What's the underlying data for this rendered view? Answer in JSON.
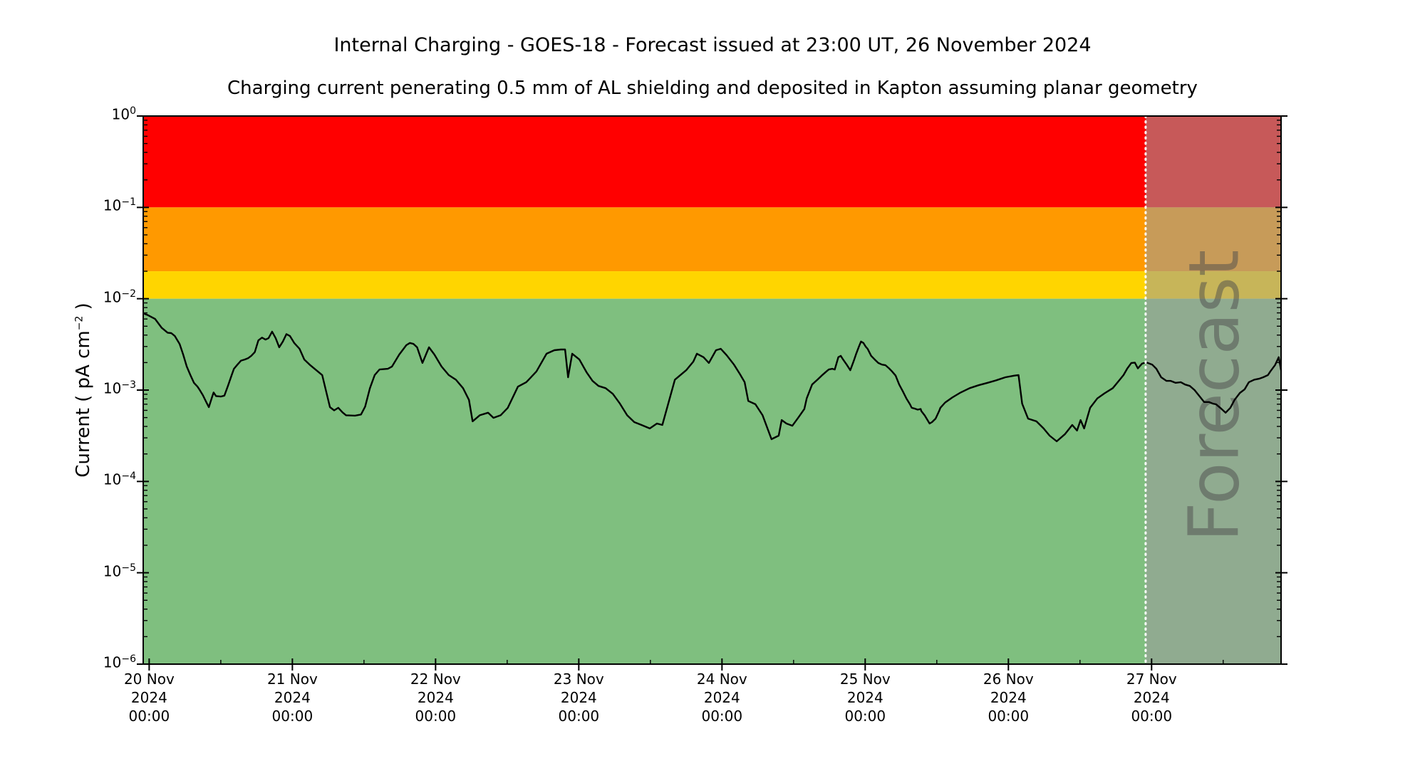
{
  "header": {
    "title": "Internal Charging - GOES-18 - Forecast issued at 23:00 UT, 26 November 2024",
    "subtitle": "Charging current penerating 0.5 mm of AL shielding and deposited in Kapton assuming planar geometry"
  },
  "y_axis_label": {
    "text_before_sup": "Current ( pA cm",
    "sup": "−2",
    "text_after_sup": " )"
  },
  "forecast": {
    "label": "Forecast",
    "start_hours": 167.0,
    "issue_time_text": "23:00 UT, 26 November 2024",
    "overlay_color": "rgba(157,157,157,0.57)",
    "divider_color": "#ffffff",
    "watermark_color": "rgba(75,75,75,0.5)"
  },
  "chart_data": {
    "type": "line",
    "title": "Internal Charging - GOES-18 - Forecast issued at 23:00 UT, 26 November 2024",
    "xlabel": "",
    "ylabel": "Current ( pA cm^-2 )",
    "y_scale": "log",
    "ylim": [
      1e-06,
      1.0
    ],
    "x_unit": "hours since 20 Nov 2024 00:00 UT",
    "xlim_hours": [
      -1.0,
      189.7
    ],
    "grid": false,
    "legend": "none",
    "line_color": "#000000",
    "bands": [
      {
        "name": "red",
        "min": 0.1,
        "max": 1.0,
        "color": "#ff0000"
      },
      {
        "name": "orange",
        "min": 0.02,
        "max": 0.1,
        "color": "#ff9900"
      },
      {
        "name": "yellow",
        "min": 0.01,
        "max": 0.02,
        "color": "#ffd500"
      },
      {
        "name": "green",
        "min": 1e-06,
        "max": 0.01,
        "color": "#7fbf7f"
      }
    ],
    "x_ticks": [
      {
        "t": 0,
        "lines": [
          "20 Nov",
          "2024",
          "00:00"
        ]
      },
      {
        "t": 24,
        "lines": [
          "21 Nov",
          "2024",
          "00:00"
        ]
      },
      {
        "t": 48,
        "lines": [
          "22 Nov",
          "2024",
          "00:00"
        ]
      },
      {
        "t": 72,
        "lines": [
          "23 Nov",
          "2024",
          "00:00"
        ]
      },
      {
        "t": 96,
        "lines": [
          "24 Nov",
          "2024",
          "00:00"
        ]
      },
      {
        "t": 120,
        "lines": [
          "25 Nov",
          "2024",
          "00:00"
        ]
      },
      {
        "t": 144,
        "lines": [
          "26 Nov",
          "2024",
          "00:00"
        ]
      },
      {
        "t": 168,
        "lines": [
          "27 Nov",
          "2024",
          "00:00"
        ]
      }
    ],
    "x_minor_ticks": [
      12,
      36,
      60,
      84,
      108,
      132,
      156,
      180
    ],
    "y_ticks": [
      {
        "log10": 0,
        "exp": "0"
      },
      {
        "log10": -1,
        "exp": "−1"
      },
      {
        "log10": -2,
        "exp": "−2"
      },
      {
        "log10": -3,
        "exp": "−3"
      },
      {
        "log10": -4,
        "exp": "−4"
      },
      {
        "log10": -5,
        "exp": "−5"
      },
      {
        "log10": -6,
        "exp": "−6"
      }
    ],
    "series": [
      {
        "name": "observed",
        "color": "#000000",
        "points": [
          [
            -1.0,
            0.0069
          ],
          [
            -0.2,
            0.0066
          ],
          [
            1.0,
            0.006
          ],
          [
            2.1,
            0.0048
          ],
          [
            3.1,
            0.00425
          ],
          [
            3.7,
            0.0042
          ],
          [
            4.3,
            0.0039
          ],
          [
            5.1,
            0.0032
          ],
          [
            5.7,
            0.00245
          ],
          [
            6.3,
            0.00181
          ],
          [
            6.9,
            0.00146
          ],
          [
            7.5,
            0.0012
          ],
          [
            8.1,
            0.00109
          ],
          [
            8.4,
            0.00102
          ],
          [
            9.0,
            0.00088
          ],
          [
            9.6,
            0.00073
          ],
          [
            10.0,
            0.00065
          ],
          [
            10.6,
            0.00086
          ],
          [
            10.8,
            0.00094
          ],
          [
            11.2,
            0.00086
          ],
          [
            12.0,
            0.00085
          ],
          [
            12.6,
            0.00087
          ],
          [
            13.2,
            0.00111
          ],
          [
            13.8,
            0.00144
          ],
          [
            14.2,
            0.00171
          ],
          [
            14.8,
            0.0019
          ],
          [
            15.4,
            0.0021
          ],
          [
            16.0,
            0.00216
          ],
          [
            16.6,
            0.00224
          ],
          [
            17.1,
            0.00237
          ],
          [
            17.7,
            0.0026
          ],
          [
            18.3,
            0.0035
          ],
          [
            18.9,
            0.00375
          ],
          [
            19.5,
            0.00357
          ],
          [
            20.0,
            0.0037
          ],
          [
            20.6,
            0.00436
          ],
          [
            21.2,
            0.0037
          ],
          [
            21.8,
            0.00294
          ],
          [
            22.4,
            0.0034
          ],
          [
            23.0,
            0.0041
          ],
          [
            23.6,
            0.0039
          ],
          [
            24.3,
            0.00328
          ],
          [
            25.2,
            0.00283
          ],
          [
            26.0,
            0.00216
          ],
          [
            27.0,
            0.00187
          ],
          [
            28.0,
            0.00165
          ],
          [
            29.0,
            0.00146
          ],
          [
            29.6,
            0.001
          ],
          [
            30.3,
            0.00065
          ],
          [
            31.0,
            0.0006
          ],
          [
            31.7,
            0.00064
          ],
          [
            32.4,
            0.00057
          ],
          [
            33.0,
            0.00053
          ],
          [
            34.5,
            0.000525
          ],
          [
            35.5,
            0.00054
          ],
          [
            36.2,
            0.00066
          ],
          [
            37.0,
            0.00105
          ],
          [
            37.8,
            0.00146
          ],
          [
            38.6,
            0.00168
          ],
          [
            40.0,
            0.00171
          ],
          [
            40.7,
            0.00181
          ],
          [
            41.9,
            0.00245
          ],
          [
            43.1,
            0.0031
          ],
          [
            43.7,
            0.00328
          ],
          [
            44.3,
            0.0032
          ],
          [
            44.9,
            0.00294
          ],
          [
            45.8,
            0.00198
          ],
          [
            46.9,
            0.00294
          ],
          [
            47.8,
            0.00245
          ],
          [
            49.0,
            0.00181
          ],
          [
            50.2,
            0.00146
          ],
          [
            51.4,
            0.0013
          ],
          [
            52.6,
            0.00105
          ],
          [
            53.6,
            0.00078
          ],
          [
            54.2,
            0.000455
          ],
          [
            55.4,
            0.00053
          ],
          [
            56.8,
            0.000565
          ],
          [
            57.7,
            0.000497
          ],
          [
            58.9,
            0.00053
          ],
          [
            60.1,
            0.00064
          ],
          [
            61.8,
            0.00109
          ],
          [
            63.2,
            0.00122
          ],
          [
            63.6,
            0.0013
          ],
          [
            64.9,
            0.0016
          ],
          [
            66.6,
            0.0025
          ],
          [
            67.9,
            0.00273
          ],
          [
            69.0,
            0.00278
          ],
          [
            69.7,
            0.00278
          ],
          [
            70.2,
            0.00138
          ],
          [
            70.9,
            0.0025
          ],
          [
            72.1,
            0.00216
          ],
          [
            73.3,
            0.00157
          ],
          [
            74.3,
            0.00126
          ],
          [
            75.3,
            0.00111
          ],
          [
            76.5,
            0.00105
          ],
          [
            77.7,
            0.00091
          ],
          [
            78.9,
            0.00071
          ],
          [
            80.1,
            0.00053
          ],
          [
            81.3,
            0.000446
          ],
          [
            82.5,
            0.000415
          ],
          [
            83.9,
            0.00038
          ],
          [
            85.1,
            0.00043
          ],
          [
            86.0,
            0.000415
          ],
          [
            88.1,
            0.0013
          ],
          [
            90.0,
            0.00165
          ],
          [
            91.2,
            0.00205
          ],
          [
            91.8,
            0.0025
          ],
          [
            92.9,
            0.00229
          ],
          [
            93.8,
            0.00198
          ],
          [
            95.0,
            0.00273
          ],
          [
            95.8,
            0.00283
          ],
          [
            96.8,
            0.0024
          ],
          [
            98.0,
            0.0019
          ],
          [
            99.0,
            0.0015
          ],
          [
            99.8,
            0.00122
          ],
          [
            100.4,
            0.00076
          ],
          [
            101.6,
            0.0007
          ],
          [
            102.8,
            0.00053
          ],
          [
            104.3,
            0.00029
          ],
          [
            105.5,
            0.000317
          ],
          [
            106.0,
            0.00047
          ],
          [
            106.8,
            0.00043
          ],
          [
            107.8,
            0.000407
          ],
          [
            108.8,
            0.0005
          ],
          [
            109.8,
            0.00062
          ],
          [
            110.2,
            0.00081
          ],
          [
            111.1,
            0.00115
          ],
          [
            112.0,
            0.0013
          ],
          [
            112.7,
            0.00144
          ],
          [
            113.5,
            0.0016
          ],
          [
            113.9,
            0.00168
          ],
          [
            114.5,
            0.00171
          ],
          [
            114.9,
            0.00168
          ],
          [
            115.5,
            0.00229
          ],
          [
            115.9,
            0.00237
          ],
          [
            116.3,
            0.00216
          ],
          [
            116.9,
            0.0019
          ],
          [
            117.5,
            0.00165
          ],
          [
            118.1,
            0.0021
          ],
          [
            118.5,
            0.0025
          ],
          [
            118.9,
            0.00294
          ],
          [
            119.3,
            0.0034
          ],
          [
            119.7,
            0.00328
          ],
          [
            120.1,
            0.00298
          ],
          [
            120.4,
            0.00283
          ],
          [
            121.0,
            0.00237
          ],
          [
            121.6,
            0.00216
          ],
          [
            122.2,
            0.00198
          ],
          [
            122.8,
            0.0019
          ],
          [
            123.4,
            0.00187
          ],
          [
            124.0,
            0.00173
          ],
          [
            124.5,
            0.0016
          ],
          [
            125.1,
            0.00144
          ],
          [
            125.7,
            0.00115
          ],
          [
            126.3,
            0.00097
          ],
          [
            126.9,
            0.00081
          ],
          [
            127.5,
            0.0007
          ],
          [
            127.8,
            0.00064
          ],
          [
            128.2,
            0.00063
          ],
          [
            128.8,
            0.00061
          ],
          [
            129.3,
            0.00062
          ],
          [
            129.4,
            0.00059
          ],
          [
            130.0,
            0.000525
          ],
          [
            130.5,
            0.000463
          ],
          [
            130.8,
            0.00043
          ],
          [
            131.2,
            0.000446
          ],
          [
            131.8,
            0.000487
          ],
          [
            132.4,
            0.00059
          ],
          [
            132.6,
            0.00064
          ],
          [
            133.4,
            0.00073
          ],
          [
            134.6,
            0.00083
          ],
          [
            136.0,
            0.00094
          ],
          [
            137.5,
            0.00105
          ],
          [
            139.0,
            0.00113
          ],
          [
            140.5,
            0.0012
          ],
          [
            142.0,
            0.00128
          ],
          [
            143.5,
            0.00138
          ],
          [
            145.0,
            0.00144
          ],
          [
            145.7,
            0.00146
          ],
          [
            146.3,
            0.00071
          ],
          [
            147.3,
            0.000487
          ],
          [
            148.7,
            0.000455
          ],
          [
            149.9,
            0.00038
          ],
          [
            150.9,
            0.000317
          ],
          [
            152.1,
            0.000275
          ],
          [
            153.5,
            0.00033
          ],
          [
            154.7,
            0.000415
          ],
          [
            155.5,
            0.00036
          ],
          [
            156.1,
            0.00047
          ],
          [
            156.7,
            0.00038
          ],
          [
            157.7,
            0.00064
          ],
          [
            158.9,
            0.00081
          ],
          [
            160.1,
            0.00092
          ],
          [
            161.5,
            0.00105
          ],
          [
            162.5,
            0.00126
          ],
          [
            163.3,
            0.00146
          ],
          [
            163.9,
            0.00171
          ],
          [
            164.6,
            0.00198
          ],
          [
            165.2,
            0.002
          ],
          [
            165.7,
            0.00173
          ],
          [
            166.4,
            0.00195
          ],
          [
            167.0,
            0.002
          ]
        ]
      },
      {
        "name": "forecast",
        "color": "#000000",
        "points": [
          [
            167.0,
            0.002
          ],
          [
            167.2,
            0.002
          ],
          [
            168.1,
            0.0019
          ],
          [
            168.8,
            0.00171
          ],
          [
            169.6,
            0.00138
          ],
          [
            170.5,
            0.00126
          ],
          [
            171.2,
            0.00126
          ],
          [
            172.0,
            0.0012
          ],
          [
            172.9,
            0.00122
          ],
          [
            173.6,
            0.00115
          ],
          [
            174.4,
            0.00111
          ],
          [
            175.2,
            0.001
          ],
          [
            176.0,
            0.00086
          ],
          [
            176.8,
            0.00074
          ],
          [
            177.6,
            0.00074
          ],
          [
            178.3,
            0.00071
          ],
          [
            178.8,
            0.0007
          ],
          [
            179.5,
            0.00064
          ],
          [
            180.4,
            0.000565
          ],
          [
            181.2,
            0.00064
          ],
          [
            181.9,
            0.00078
          ],
          [
            182.8,
            0.00093
          ],
          [
            183.6,
            0.00102
          ],
          [
            184.3,
            0.00122
          ],
          [
            185.2,
            0.0013
          ],
          [
            186.0,
            0.00133
          ],
          [
            186.7,
            0.00138
          ],
          [
            187.5,
            0.00146
          ],
          [
            187.9,
            0.0016
          ],
          [
            188.7,
            0.00188
          ],
          [
            189.3,
            0.00229
          ],
          [
            189.7,
            0.00165
          ]
        ]
      }
    ]
  }
}
